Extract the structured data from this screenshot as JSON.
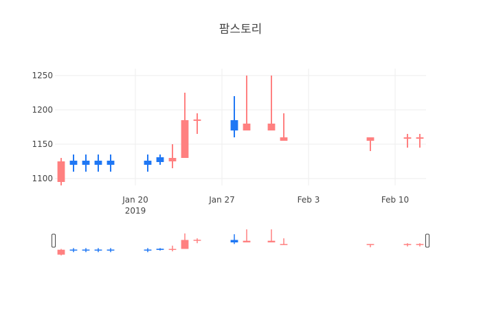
{
  "chart_data": {
    "type": "candlestick",
    "title": "팜스토리",
    "xlabel": "",
    "ylabel": "",
    "ylim": [
      1090,
      1260
    ],
    "x_ticks": [
      {
        "date": "2019-01-20",
        "label": "Jan 20",
        "sublabel": "2019"
      },
      {
        "date": "2019-01-27",
        "label": "Jan 27",
        "sublabel": ""
      },
      {
        "date": "2019-02-03",
        "label": "Feb 3",
        "sublabel": ""
      },
      {
        "date": "2019-02-10",
        "label": "Feb 10",
        "sublabel": ""
      }
    ],
    "y_ticks": [
      1100,
      1150,
      1200,
      1250
    ],
    "grid": true,
    "rangeslider": true,
    "colors": {
      "increasing": "#1f77f4",
      "decreasing": "#ff8080",
      "grid": "#eeeeee"
    },
    "series": [
      {
        "date": "2019-01-14",
        "open": 1125,
        "high": 1130,
        "low": 1090,
        "close": 1095
      },
      {
        "date": "2019-01-15",
        "open": 1120,
        "high": 1135,
        "low": 1110,
        "close": 1126
      },
      {
        "date": "2019-01-16",
        "open": 1120,
        "high": 1135,
        "low": 1110,
        "close": 1126
      },
      {
        "date": "2019-01-17",
        "open": 1120,
        "high": 1135,
        "low": 1110,
        "close": 1126
      },
      {
        "date": "2019-01-18",
        "open": 1120,
        "high": 1135,
        "low": 1110,
        "close": 1126
      },
      {
        "date": "2019-01-21",
        "open": 1120,
        "high": 1135,
        "low": 1110,
        "close": 1126
      },
      {
        "date": "2019-01-22",
        "open": 1124,
        "high": 1135,
        "low": 1120,
        "close": 1131
      },
      {
        "date": "2019-01-23",
        "open": 1130,
        "high": 1150,
        "low": 1115,
        "close": 1125
      },
      {
        "date": "2019-01-24",
        "open": 1185,
        "high": 1225,
        "low": 1130,
        "close": 1130
      },
      {
        "date": "2019-01-25",
        "open": 1186,
        "high": 1195,
        "low": 1165,
        "close": 1184
      },
      {
        "date": "2019-01-28",
        "open": 1170,
        "high": 1220,
        "low": 1160,
        "close": 1185
      },
      {
        "date": "2019-01-29",
        "open": 1180,
        "high": 1250,
        "low": 1170,
        "close": 1170
      },
      {
        "date": "2019-01-31",
        "open": 1180,
        "high": 1250,
        "low": 1170,
        "close": 1170
      },
      {
        "date": "2019-02-01",
        "open": 1160,
        "high": 1195,
        "low": 1155,
        "close": 1155
      },
      {
        "date": "2019-02-08",
        "open": 1160,
        "high": 1160,
        "low": 1140,
        "close": 1155
      },
      {
        "date": "2019-02-11",
        "open": 1160,
        "high": 1165,
        "low": 1145,
        "close": 1158
      },
      {
        "date": "2019-02-12",
        "open": 1160,
        "high": 1165,
        "low": 1145,
        "close": 1158
      }
    ]
  }
}
